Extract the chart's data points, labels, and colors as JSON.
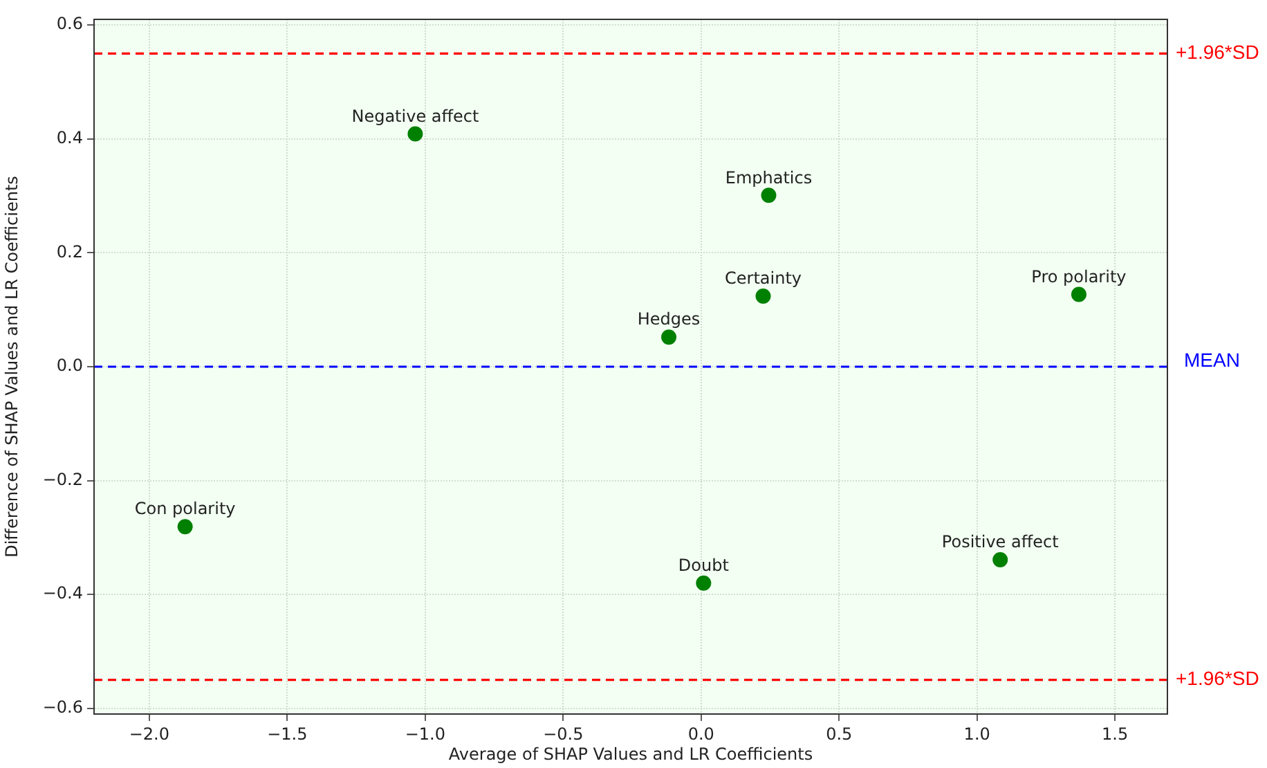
{
  "chart_data": {
    "type": "scatter",
    "xlabel": "Average of SHAP Values and LR Coefficients",
    "ylabel": "Difference of SHAP Values and LR Coefficients",
    "x": [
      -1.036,
      0.245,
      0.225,
      1.369,
      -0.117,
      -1.87,
      0.009,
      1.084
    ],
    "series": [
      {
        "color": "#008000",
        "values": [
          0.409,
          0.301,
          0.124,
          0.127,
          0.052,
          -0.281,
          -0.38,
          -0.339
        ]
      }
    ],
    "xlim": [
      -2.2,
      1.69
    ],
    "ylim": [
      -0.61,
      0.61
    ],
    "xticks": [
      {
        "value": -2,
        "label": "−2.0"
      },
      {
        "value": -1.5,
        "label": "−1.5"
      },
      {
        "value": -1,
        "label": "−1.0"
      },
      {
        "value": -0.5,
        "label": "−0.5"
      },
      {
        "value": 0,
        "label": "0.0"
      },
      {
        "value": 0.5,
        "label": "0.5"
      },
      {
        "value": 1,
        "label": "1.0"
      },
      {
        "value": 1.5,
        "label": "1.5"
      }
    ],
    "yticks": [
      {
        "value": -0.6,
        "label": "−0.6"
      },
      {
        "value": -0.4,
        "label": "−0.4"
      },
      {
        "value": -0.2,
        "label": "−0.2"
      },
      {
        "value": 0,
        "label": "0.0"
      },
      {
        "value": 0.2,
        "label": "0.2"
      },
      {
        "value": 0.4,
        "label": "0.4"
      },
      {
        "value": 0.6,
        "label": "0.6"
      }
    ],
    "ref_lines": [
      {
        "axis": "y",
        "value": 0.55,
        "label": "+1.96*SD",
        "color": "#ff0000",
        "line_style": "dashed"
      },
      {
        "axis": "y",
        "value": 0,
        "label": "MEAN",
        "color": "#0000ff",
        "line_style": "dashed"
      },
      {
        "axis": "y",
        "value": -0.55,
        "label": "+1.96*SD",
        "color": "#ff0000",
        "line_style": "dashed"
      }
    ],
    "annotations": [
      {
        "text": "Negative affect",
        "x": -1.036,
        "y": 0.409
      },
      {
        "text": "Emphatics",
        "x": 0.245,
        "y": 0.301
      },
      {
        "text": "Certainty",
        "x": 0.225,
        "y": 0.124
      },
      {
        "text": "Pro polarity",
        "x": 1.369,
        "y": 0.127
      },
      {
        "text": "Hedges",
        "x": -0.117,
        "y": 0.052
      },
      {
        "text": "Con polarity",
        "x": -1.87,
        "y": -0.281
      },
      {
        "text": "Doubt",
        "x": 0.009,
        "y": -0.38
      },
      {
        "text": "Positive affect",
        "x": 1.084,
        "y": -0.339
      }
    ],
    "grid": true,
    "legend": false,
    "marker": "circle"
  }
}
